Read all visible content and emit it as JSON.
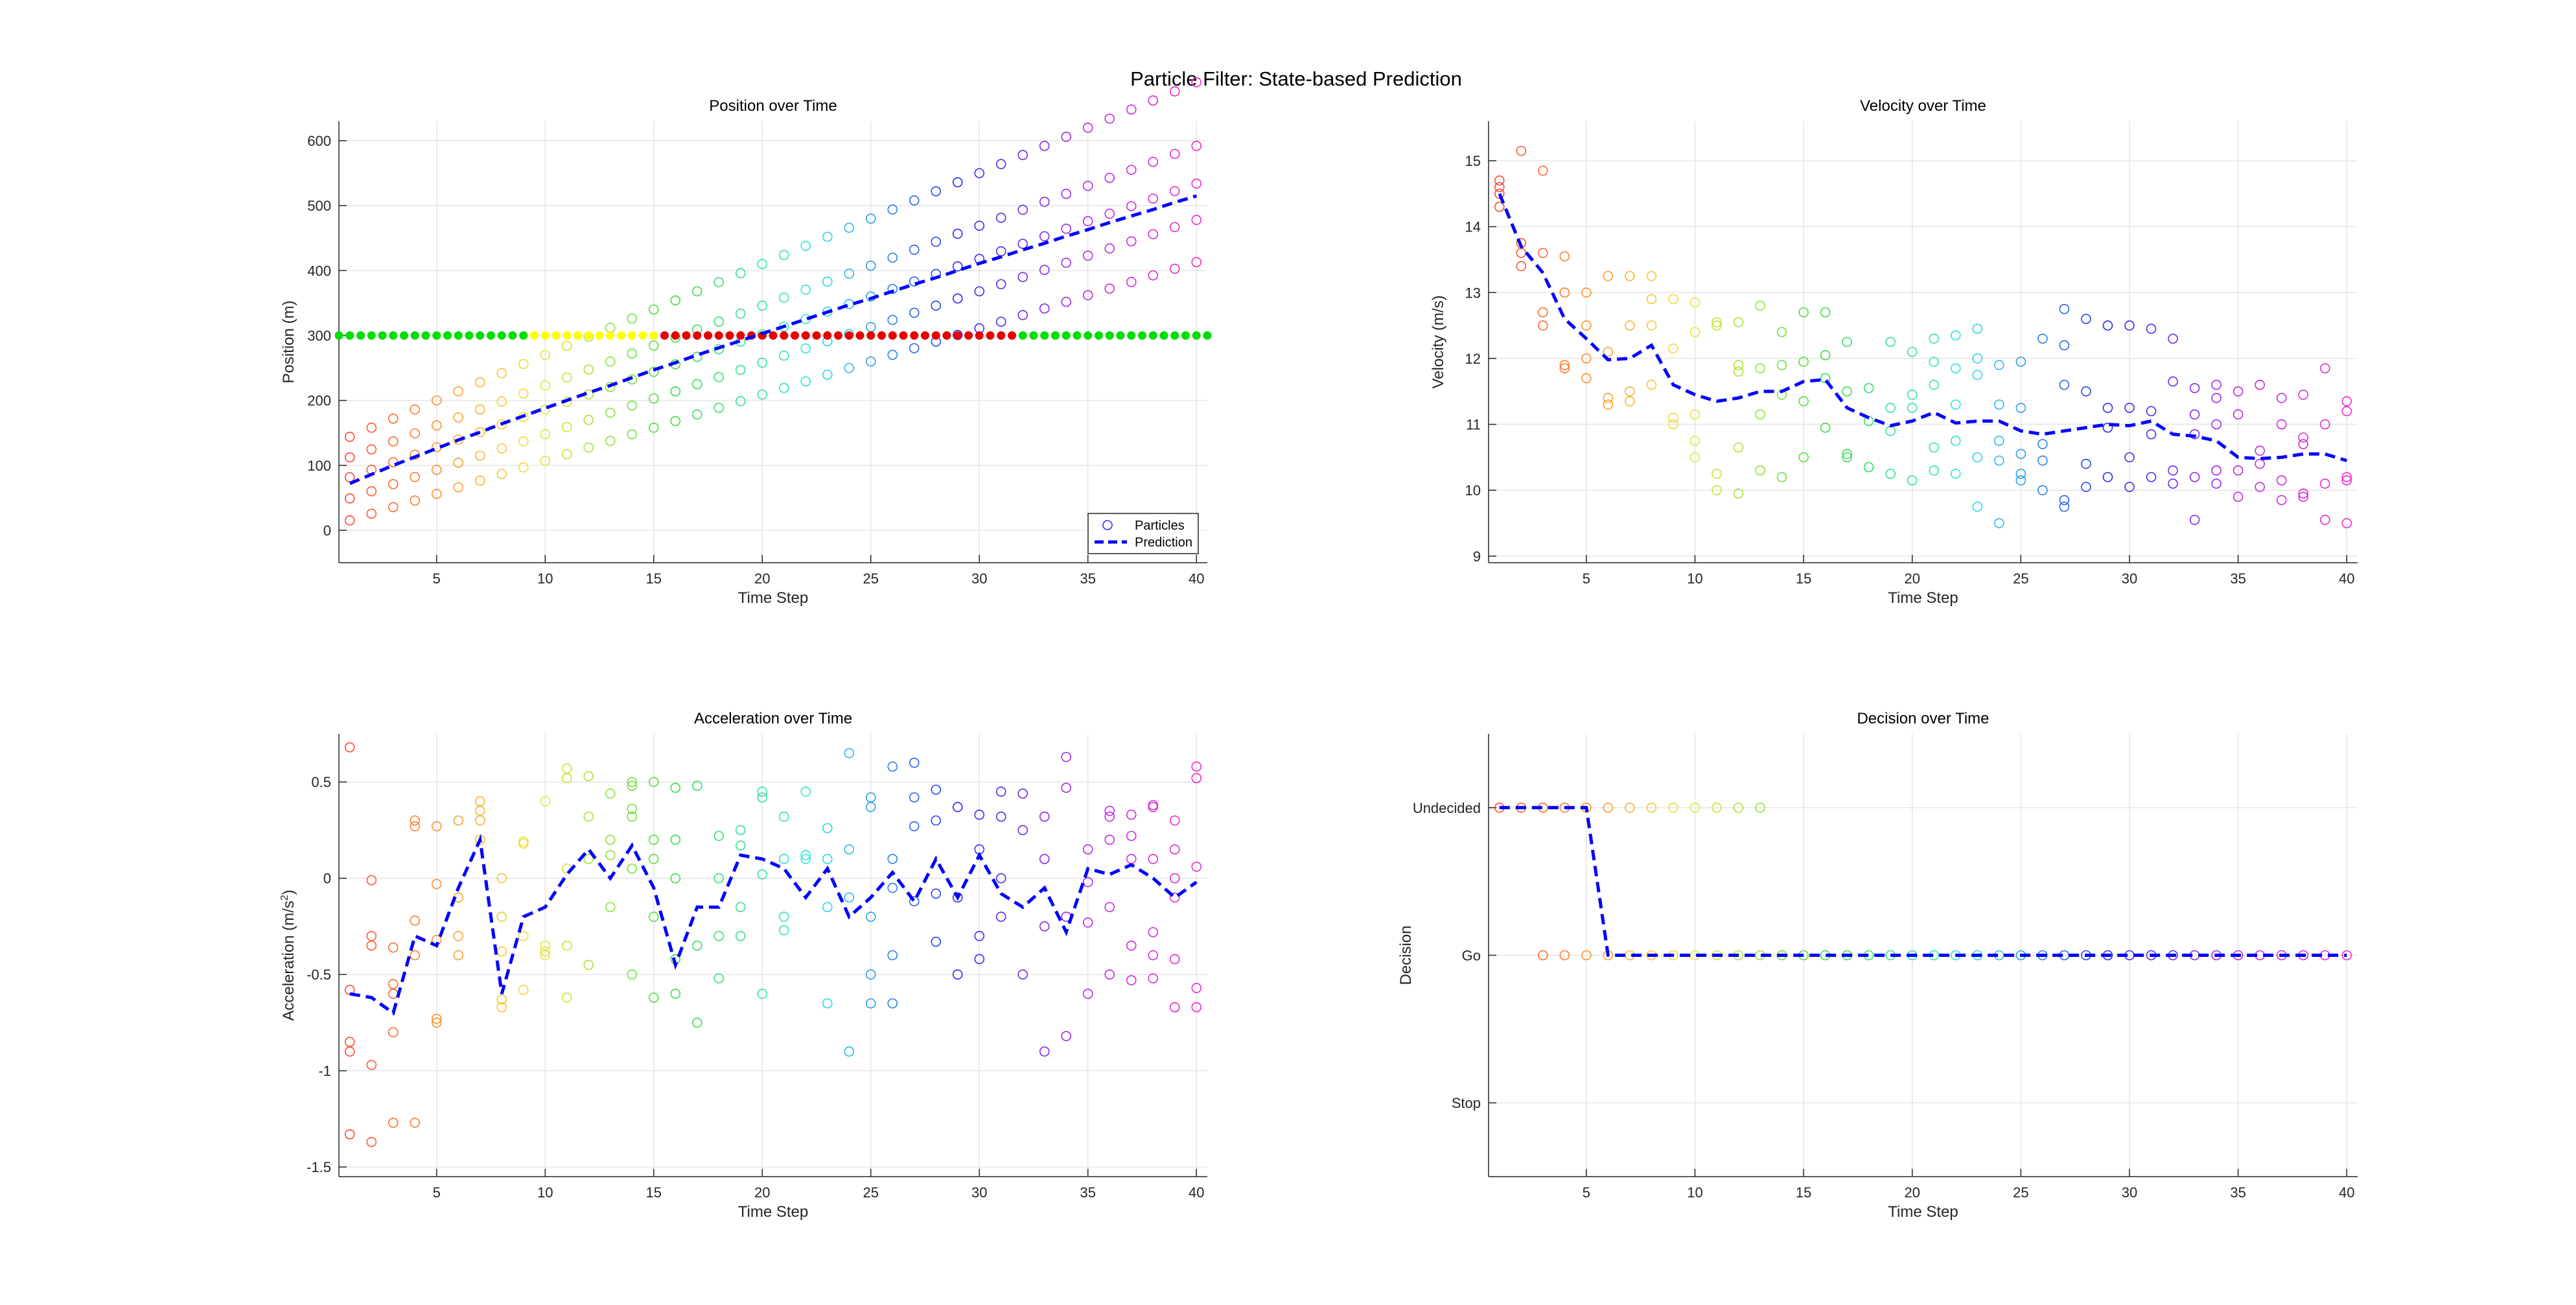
{
  "figure_title": "Particle Filter: State-based Prediction",
  "colors": {
    "prediction": "#0000ff",
    "grid": "#e6e6e6",
    "axis": "#262626",
    "light_green": "#00dd00",
    "light_yellow": "#ffff00",
    "light_red": "#e60000"
  },
  "legend": {
    "particles": "Particles",
    "prediction": "Prediction"
  },
  "chart_data": [
    {
      "id": "position",
      "type": "scatter",
      "title": "Position over Time",
      "xlabel": "Time Step",
      "ylabel": "Position (m)",
      "xlim": [
        0.5,
        40.5
      ],
      "ylim": [
        -50,
        630
      ],
      "xticks": [
        5,
        10,
        15,
        20,
        25,
        30,
        35,
        40
      ],
      "yticks": [
        0,
        100,
        200,
        300,
        400,
        500,
        600
      ],
      "ytick_labels": [
        "0",
        "100",
        "200",
        "300",
        "400",
        "500",
        "600"
      ],
      "legend_position": "bottom-right",
      "particle_series": {
        "x0": [
          5,
          38,
          70,
          100,
          130
        ],
        "v": [
          10.2,
          11.0,
          11.6,
          12.3,
          14.0
        ]
      },
      "traffic_light": {
        "y": 300,
        "start": 0.5,
        "step": 0.5,
        "states": [
          "green",
          "green",
          "green",
          "green",
          "green",
          "green",
          "green",
          "green",
          "green",
          "green",
          "green",
          "green",
          "green",
          "green",
          "green",
          "green",
          "green",
          "green",
          "yellow",
          "yellow",
          "yellow",
          "yellow",
          "yellow",
          "yellow",
          "yellow",
          "yellow",
          "yellow",
          "yellow",
          "yellow",
          "yellow",
          "red",
          "red",
          "red",
          "red",
          "red",
          "red",
          "red",
          "red",
          "red",
          "red",
          "red",
          "red",
          "red",
          "red",
          "red",
          "red",
          "red",
          "red",
          "red",
          "red",
          "red",
          "red",
          "red",
          "red",
          "red",
          "red",
          "red",
          "red",
          "red",
          "red",
          "red",
          "red",
          "red",
          "green",
          "green",
          "green",
          "green",
          "green",
          "green",
          "green",
          "green",
          "green",
          "green",
          "green",
          "green",
          "green",
          "green",
          "green",
          "green",
          "green",
          "green",
          "green",
          "green",
          "green",
          "green",
          "yellow",
          "yellow",
          "yellow",
          "yellow",
          "yellow",
          "yellow",
          "yellow",
          "yellow",
          "yellow",
          "yellow",
          "red",
          "red",
          "red",
          "red",
          "red",
          "red",
          "red",
          "red",
          "red",
          "red",
          "red",
          "red",
          "red",
          "red",
          "red",
          "red",
          "red",
          "red",
          "red",
          "red",
          "red",
          "red",
          "red",
          "red",
          "red",
          "red",
          "red",
          "green",
          "green",
          "green",
          "green",
          "green",
          "green",
          "green",
          "green",
          "green",
          "green",
          "green",
          "green",
          "green",
          "green",
          "green",
          "green",
          "green",
          "green",
          "green",
          "green",
          "green",
          "yellow",
          "yellow",
          "yellow",
          "yellow",
          "yellow",
          "yellow"
        ]
      },
      "prediction": {
        "x": [
          1,
          2,
          3,
          4,
          5,
          6,
          7,
          8,
          9,
          10,
          11,
          12,
          13,
          14,
          15,
          16,
          17,
          18,
          19,
          20,
          21,
          22,
          23,
          24,
          25,
          26,
          27,
          28,
          29,
          30,
          31,
          32,
          33,
          34,
          35,
          36,
          37,
          38,
          39,
          40
        ],
        "y": [
          72,
          86,
          100,
          113,
          126,
          139,
          151,
          164,
          176,
          188,
          200,
          212,
          223,
          235,
          247,
          258,
          270,
          281,
          292,
          303,
          314,
          325,
          336,
          347,
          357,
          368,
          379,
          389,
          400,
          411,
          421,
          432,
          442,
          453,
          463,
          474,
          484,
          494,
          505,
          515
        ]
      }
    },
    {
      "id": "velocity",
      "type": "scatter",
      "title": "Velocity over Time",
      "xlabel": "Time Step",
      "ylabel": "Velocity (m/s)",
      "xlim": [
        0.5,
        40.5
      ],
      "ylim": [
        8.9,
        15.6
      ],
      "xticks": [
        5,
        10,
        15,
        20,
        25,
        30,
        35,
        40
      ],
      "yticks": [
        9,
        10,
        11,
        12,
        13,
        14,
        15
      ],
      "ytick_labels": [
        "9",
        "10",
        "11",
        "12",
        "13",
        "14",
        "15"
      ],
      "particles": [
        [
          14.7,
          14.6,
          14.3,
          14.5
        ],
        [
          15.15,
          13.4,
          13.6,
          13.75
        ],
        [
          14.85,
          13.6,
          12.7,
          12.5
        ],
        [
          13.55,
          13.0,
          11.9,
          11.85
        ],
        [
          13.0,
          12.0,
          12.5,
          11.7
        ],
        [
          13.25,
          12.1,
          11.3,
          11.4
        ],
        [
          13.25,
          12.5,
          11.5,
          11.35
        ],
        [
          13.25,
          12.9,
          12.5,
          11.6
        ],
        [
          12.9,
          12.15,
          11.0,
          11.1
        ],
        [
          12.85,
          12.4,
          11.15,
          10.75,
          10.5
        ],
        [
          12.5,
          12.55,
          10.25,
          10.0
        ],
        [
          12.55,
          11.9,
          11.8,
          10.65,
          9.95
        ],
        [
          12.8,
          11.85,
          11.15,
          10.3
        ],
        [
          12.4,
          11.9,
          11.45,
          10.2
        ],
        [
          12.7,
          11.95,
          11.35,
          10.5
        ],
        [
          12.7,
          12.05,
          11.7,
          10.95
        ],
        [
          12.25,
          11.5,
          10.55,
          10.5
        ],
        [
          11.55,
          11.05,
          10.35,
          10.35
        ],
        [
          12.25,
          11.25,
          10.9,
          10.25
        ],
        [
          12.1,
          11.45,
          11.25,
          10.15
        ],
        [
          12.3,
          11.95,
          11.6,
          10.65,
          10.3
        ],
        [
          12.35,
          11.85,
          11.3,
          10.75,
          10.25
        ],
        [
          12.45,
          12.0,
          11.75,
          10.5,
          9.75
        ],
        [
          11.9,
          11.3,
          10.75,
          10.45,
          9.5
        ],
        [
          11.95,
          11.25,
          10.55,
          10.25,
          10.15
        ],
        [
          12.3,
          10.7,
          10.45,
          10.0
        ],
        [
          12.75,
          12.2,
          11.6,
          9.85,
          9.75
        ],
        [
          12.6,
          11.5,
          10.4,
          10.05
        ],
        [
          12.5,
          11.25,
          10.95,
          10.2
        ],
        [
          12.5,
          11.25,
          10.5,
          10.05
        ],
        [
          12.45,
          11.2,
          10.85,
          10.2
        ],
        [
          12.3,
          11.65,
          10.3,
          10.1
        ],
        [
          11.55,
          11.15,
          10.85,
          10.2,
          9.55
        ],
        [
          11.6,
          11.4,
          11.0,
          10.3,
          10.1
        ],
        [
          11.5,
          11.15,
          10.3,
          9.9
        ],
        [
          11.6,
          10.6,
          10.4,
          10.05
        ],
        [
          11.4,
          11.0,
          10.15,
          9.85
        ],
        [
          11.45,
          10.8,
          10.7,
          9.95,
          9.9
        ],
        [
          11.85,
          11.0,
          10.1,
          9.55
        ],
        [
          11.35,
          11.2,
          10.2,
          10.15,
          9.5
        ]
      ],
      "prediction": {
        "x": [
          1,
          2,
          3,
          4,
          5,
          6,
          7,
          8,
          9,
          10,
          11,
          12,
          13,
          14,
          15,
          16,
          17,
          18,
          19,
          20,
          21,
          22,
          23,
          24,
          25,
          26,
          27,
          28,
          29,
          30,
          31,
          32,
          33,
          34,
          35,
          36,
          37,
          38,
          39,
          40
        ],
        "y": [
          14.5,
          13.7,
          13.3,
          12.6,
          12.3,
          11.98,
          12.0,
          12.2,
          11.6,
          11.45,
          11.35,
          11.4,
          11.5,
          11.5,
          11.65,
          11.68,
          11.25,
          11.1,
          10.98,
          11.05,
          11.18,
          11.02,
          11.05,
          11.05,
          10.9,
          10.85,
          10.9,
          10.95,
          11.0,
          10.98,
          11.05,
          10.85,
          10.82,
          10.75,
          10.5,
          10.48,
          10.5,
          10.55,
          10.55,
          10.45
        ]
      }
    },
    {
      "id": "acceleration",
      "type": "scatter",
      "title": "Acceleration over Time",
      "xlabel": "Time Step",
      "ylabel": "Acceleration (m/s",
      "ylabel_sup": "2",
      "ylabel_close": ")",
      "xlim": [
        0.5,
        40.5
      ],
      "ylim": [
        -1.55,
        0.75
      ],
      "xticks": [
        5,
        10,
        15,
        20,
        25,
        30,
        35,
        40
      ],
      "yticks": [
        -1.5,
        -1,
        -0.5,
        0,
        0.5
      ],
      "ytick_labels": [
        "-1.5",
        "-1",
        "-0.5",
        "0",
        "0.5"
      ],
      "particles": [
        [
          0.68,
          -0.58,
          -0.85,
          -0.9,
          -1.33
        ],
        [
          -0.01,
          -0.3,
          -0.35,
          -0.97,
          -1.37
        ],
        [
          -0.36,
          -0.55,
          -0.6,
          -0.8,
          -1.27
        ],
        [
          0.3,
          0.27,
          -0.22,
          -0.4,
          -1.27
        ],
        [
          0.27,
          -0.03,
          -0.32,
          -0.73,
          -0.75
        ],
        [
          0.3,
          -0.1,
          -0.3,
          -0.4
        ],
        [
          0.4,
          0.35,
          0.3,
          0.2
        ],
        [
          0.0,
          -0.2,
          -0.38,
          -0.63,
          -0.67
        ],
        [
          0.19,
          0.18,
          -0.3,
          -0.58
        ],
        [
          0.4,
          -0.35,
          -0.38,
          -0.4
        ],
        [
          0.57,
          0.52,
          0.05,
          -0.35,
          -0.62
        ],
        [
          0.53,
          0.32,
          0.1,
          -0.45
        ],
        [
          0.44,
          0.2,
          0.12,
          -0.15
        ],
        [
          0.5,
          0.48,
          0.36,
          0.32,
          0.05,
          -0.5
        ],
        [
          0.5,
          0.2,
          0.1,
          -0.2,
          -0.62
        ],
        [
          0.47,
          0.2,
          0.0,
          -0.42,
          -0.6
        ],
        [
          0.48,
          -0.35,
          -0.75
        ],
        [
          0.22,
          0.0,
          -0.3,
          -0.52
        ],
        [
          0.25,
          0.17,
          -0.15,
          -0.3
        ],
        [
          0.45,
          0.42,
          0.02,
          -0.6
        ],
        [
          0.32,
          0.1,
          -0.2,
          -0.27
        ],
        [
          0.45,
          0.12,
          0.1
        ],
        [
          0.26,
          0.1,
          -0.15,
          -0.65
        ],
        [
          0.65,
          0.15,
          -0.1,
          -0.9
        ],
        [
          0.42,
          0.37,
          -0.2,
          -0.5,
          -0.65
        ],
        [
          0.58,
          0.1,
          -0.05,
          -0.4,
          -0.65
        ],
        [
          0.6,
          0.42,
          0.27,
          -0.12
        ],
        [
          0.46,
          0.3,
          -0.08,
          -0.33
        ],
        [
          0.37,
          -0.1,
          -0.5
        ],
        [
          0.33,
          0.15,
          -0.3,
          -0.42
        ],
        [
          0.45,
          0.32,
          0.0,
          -0.2
        ],
        [
          0.44,
          0.25,
          -0.5
        ],
        [
          0.32,
          0.1,
          -0.25,
          -0.9
        ],
        [
          0.63,
          0.47,
          -0.2,
          -0.82
        ],
        [
          0.15,
          -0.02,
          -0.23,
          -0.6
        ],
        [
          0.35,
          0.32,
          0.2,
          -0.15,
          -0.5
        ],
        [
          0.33,
          0.22,
          0.1,
          -0.35,
          -0.53
        ],
        [
          0.38,
          0.37,
          0.1,
          -0.28,
          -0.4,
          -0.52
        ],
        [
          0.3,
          0.15,
          0.0,
          -0.1,
          -0.42,
          -0.67
        ],
        [
          0.58,
          0.52,
          0.06,
          -0.57,
          -0.67
        ]
      ],
      "prediction": {
        "x": [
          1,
          2,
          3,
          4,
          5,
          6,
          7,
          8,
          9,
          10,
          11,
          12,
          13,
          14,
          15,
          16,
          17,
          18,
          19,
          20,
          21,
          22,
          23,
          24,
          25,
          26,
          27,
          28,
          29,
          30,
          31,
          32,
          33,
          34,
          35,
          36,
          37,
          38,
          39,
          40
        ],
        "y": [
          -0.6,
          -0.62,
          -0.7,
          -0.3,
          -0.35,
          -0.05,
          0.2,
          -0.6,
          -0.2,
          -0.15,
          0.02,
          0.15,
          0.0,
          0.17,
          -0.05,
          -0.45,
          -0.15,
          -0.15,
          0.12,
          0.1,
          0.05,
          -0.1,
          0.05,
          -0.2,
          -0.1,
          0.03,
          -0.12,
          0.1,
          -0.1,
          0.12,
          -0.08,
          -0.15,
          -0.05,
          -0.28,
          0.05,
          0.02,
          0.07,
          0.0,
          -0.1,
          -0.02
        ]
      }
    },
    {
      "id": "decision",
      "type": "scatter",
      "title": "Decision over Time",
      "xlabel": "Time Step",
      "ylabel": "Decision",
      "xlim": [
        0.5,
        40.5
      ],
      "ylim": [
        -1.5,
        1.5
      ],
      "xticks": [
        5,
        10,
        15,
        20,
        25,
        30,
        35,
        40
      ],
      "yticks": [
        -1,
        0,
        1
      ],
      "ytick_labels": [
        "Stop",
        "Go",
        "Undecided"
      ],
      "particles_undecided_steps": [
        1,
        2,
        3,
        4,
        5,
        6,
        7,
        8,
        9,
        10,
        11,
        12,
        13
      ],
      "particles_go_steps": [
        3,
        4,
        5,
        6,
        7,
        8,
        9,
        10,
        11,
        12,
        13,
        14,
        15,
        16,
        17,
        18,
        19,
        20,
        21,
        22,
        23,
        24,
        25,
        26,
        27,
        28,
        29,
        30,
        31,
        32,
        33,
        34,
        35,
        36,
        37,
        38,
        39,
        40
      ],
      "prediction": {
        "x": [
          1,
          2,
          3,
          4,
          5,
          6,
          7,
          8,
          9,
          10,
          11,
          12,
          13,
          14,
          15,
          16,
          17,
          18,
          19,
          20,
          21,
          22,
          23,
          24,
          25,
          26,
          27,
          28,
          29,
          30,
          31,
          32,
          33,
          34,
          35,
          36,
          37,
          38,
          39,
          40
        ],
        "y": [
          1,
          1,
          1,
          1,
          1,
          0,
          0,
          0,
          0,
          0,
          0,
          0,
          0,
          0,
          0,
          0,
          0,
          0,
          0,
          0,
          0,
          0,
          0,
          0,
          0,
          0,
          0,
          0,
          0,
          0,
          0,
          0,
          0,
          0,
          0,
          0,
          0,
          0,
          0,
          0
        ]
      }
    }
  ]
}
